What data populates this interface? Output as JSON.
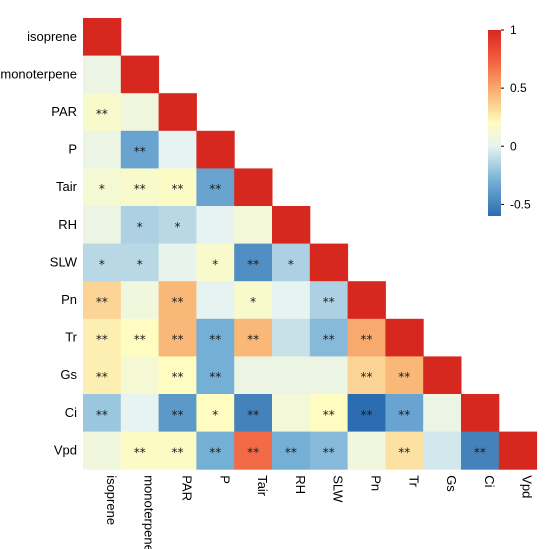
{
  "chart_data": {
    "type": "heatmap",
    "title": "",
    "xlabel": "",
    "ylabel": "",
    "variables": [
      "isoprene",
      "monoterpene",
      "PAR",
      "P",
      "Tair",
      "RH",
      "SLW",
      "Pn",
      "Tr",
      "Gs",
      "Ci",
      "Vpd"
    ],
    "matrix": [
      [
        1
      ],
      [
        0.05,
        1
      ],
      [
        0.15,
        0.08,
        1
      ],
      [
        0.05,
        -0.35,
        0.0,
        1
      ],
      [
        0.12,
        0.15,
        0.18,
        -0.35,
        1
      ],
      [
        0.05,
        -0.15,
        -0.12,
        0.0,
        0.1,
        1
      ],
      [
        -0.12,
        -0.12,
        0.02,
        0.15,
        -0.45,
        -0.15,
        1
      ],
      [
        0.35,
        0.08,
        0.45,
        0.0,
        0.15,
        0.0,
        -0.15,
        1
      ],
      [
        0.25,
        0.2,
        0.45,
        -0.3,
        0.45,
        -0.08,
        -0.25,
        0.5,
        1
      ],
      [
        0.25,
        0.12,
        0.2,
        -0.3,
        0.05,
        0.05,
        0.05,
        0.35,
        0.45,
        1
      ],
      [
        -0.2,
        0.0,
        -0.4,
        0.2,
        -0.5,
        0.1,
        0.2,
        -0.6,
        -0.35,
        0.05,
        1
      ],
      [
        0.08,
        0.18,
        0.18,
        -0.3,
        0.7,
        -0.3,
        -0.25,
        0.08,
        0.3,
        -0.05,
        -0.5,
        1
      ]
    ],
    "significance": [
      [
        ""
      ],
      [
        "",
        ""
      ],
      [
        "**",
        "",
        ""
      ],
      [
        "",
        "**",
        "",
        ""
      ],
      [
        "*",
        "**",
        "**",
        "**",
        ""
      ],
      [
        "",
        "*",
        "*",
        "",
        "",
        ""
      ],
      [
        "*",
        "*",
        "",
        "*",
        "**",
        "*",
        ""
      ],
      [
        "**",
        "",
        "**",
        "",
        "*",
        "",
        "**",
        ""
      ],
      [
        "**",
        "**",
        "**",
        "**",
        "**",
        "",
        "**",
        "**",
        ""
      ],
      [
        "**",
        "",
        "**",
        "**",
        "",
        "",
        "",
        "**",
        "**",
        ""
      ],
      [
        "**",
        "",
        "**",
        "*",
        "**",
        "",
        "**",
        "**",
        "**",
        "",
        ""
      ],
      [
        "",
        "**",
        "**",
        "**",
        "**",
        "**",
        "**",
        "",
        "**",
        "",
        "**",
        ""
      ]
    ],
    "vmin": -0.6,
    "vmax": 1,
    "colorbar_ticks": [
      1,
      0.5,
      0,
      -0.5
    ],
    "colorbar_tick_labels": [
      "1",
      "0.5",
      "0",
      "-0.5"
    ],
    "colormap": {
      "stops": [
        {
          "v": -0.6,
          "color": "#2c6cb0"
        },
        {
          "v": -0.3,
          "color": "#74afd5"
        },
        {
          "v": 0.0,
          "color": "#e6f3f0"
        },
        {
          "v": 0.2,
          "color": "#fefcc0"
        },
        {
          "v": 0.45,
          "color": "#f9b877"
        },
        {
          "v": 0.75,
          "color": "#f15c3c"
        },
        {
          "v": 1.0,
          "color": "#d7281f"
        }
      ]
    },
    "legend_placement": "top-right"
  }
}
